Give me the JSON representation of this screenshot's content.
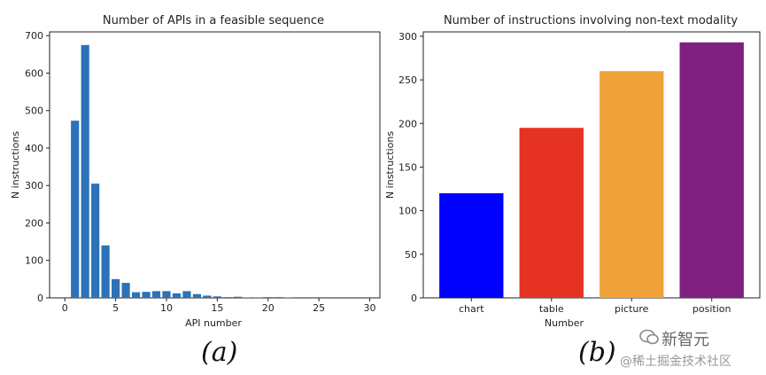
{
  "chart_data": [
    {
      "type": "bar",
      "title": "Number of APIs in a feasible sequence",
      "xlabel": "API number",
      "ylabel": "N instructions",
      "xlim": [
        -1.5,
        31
      ],
      "ylim": [
        0,
        710
      ],
      "xticks": [
        0,
        5,
        10,
        15,
        20,
        25,
        30
      ],
      "yticks": [
        0,
        100,
        200,
        300,
        400,
        500,
        600,
        700
      ],
      "color": "#2b72b8",
      "x": [
        1,
        2,
        3,
        4,
        5,
        6,
        7,
        8,
        9,
        10,
        11,
        12,
        13,
        14,
        15,
        16,
        17,
        18,
        19,
        20,
        21,
        22,
        23,
        24,
        25,
        26,
        27,
        28,
        29,
        30
      ],
      "values": [
        473,
        675,
        305,
        140,
        50,
        40,
        15,
        16,
        18,
        18,
        12,
        18,
        10,
        6,
        4,
        2,
        3,
        1,
        1,
        2,
        2,
        1,
        0,
        0,
        0,
        0,
        0,
        0,
        0,
        0
      ],
      "grid": false
    },
    {
      "type": "bar",
      "title": "Number of instructions involving non-text modality",
      "xlabel": "Number",
      "ylabel": "N instructions",
      "ylim": [
        0,
        305
      ],
      "yticks": [
        0,
        50,
        100,
        150,
        200,
        250,
        300
      ],
      "categories": [
        "chart",
        "table",
        "picture",
        "position"
      ],
      "values": [
        120,
        195,
        260,
        293
      ],
      "colors": [
        "#0000ff",
        "#e63223",
        "#f0a23a",
        "#7f1f7f"
      ],
      "grid": false
    }
  ],
  "captions": {
    "a": "(a)",
    "b": "(b)"
  },
  "watermark": {
    "line1": "新智元",
    "line2": "@稀土掘金技术社区"
  }
}
